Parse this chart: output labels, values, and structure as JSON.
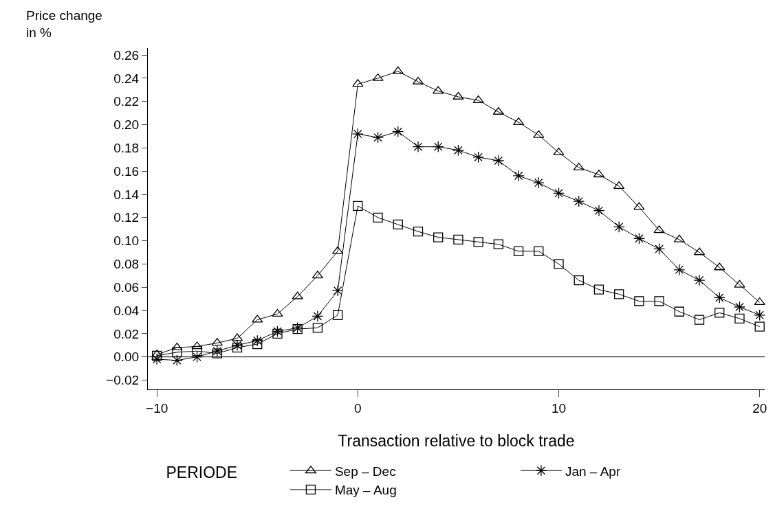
{
  "chart_data": {
    "type": "line",
    "ylabel": "Price change\nin %",
    "xlabel": "Transaction relative to block trade",
    "legend_title": "PERIODE",
    "x": [
      -10,
      -9,
      -8,
      -7,
      -6,
      -5,
      -4,
      -3,
      -2,
      -1,
      0,
      1,
      2,
      3,
      4,
      5,
      6,
      7,
      8,
      9,
      10,
      11,
      12,
      13,
      14,
      15,
      16,
      17,
      18,
      19,
      20
    ],
    "series": [
      {
        "name": "Sep – Dec",
        "color": "#000000",
        "marker": "triangle",
        "values": [
          0.002,
          0.008,
          0.009,
          0.012,
          0.016,
          0.032,
          0.037,
          0.052,
          0.07,
          0.091,
          0.235,
          0.24,
          0.246,
          0.237,
          0.229,
          0.224,
          0.221,
          0.211,
          0.202,
          0.191,
          0.176,
          0.163,
          0.157,
          0.147,
          0.129,
          0.109,
          0.101,
          0.09,
          0.077,
          0.062,
          0.047
        ]
      },
      {
        "name": "Jan – Apr",
        "color": "#000000",
        "marker": "cross",
        "values": [
          -0.002,
          -0.003,
          0.0,
          0.005,
          0.01,
          0.014,
          0.022,
          0.025,
          0.035,
          0.057,
          0.192,
          0.189,
          0.194,
          0.181,
          0.181,
          0.178,
          0.172,
          0.169,
          0.156,
          0.15,
          0.141,
          0.134,
          0.126,
          0.112,
          0.102,
          0.093,
          0.075,
          0.066,
          0.051,
          0.043,
          0.036
        ]
      },
      {
        "name": "May – Aug",
        "color": "#000000",
        "marker": "square",
        "values": [
          0.001,
          0.004,
          0.005,
          0.003,
          0.008,
          0.011,
          0.02,
          0.024,
          0.025,
          0.036,
          0.13,
          0.12,
          0.114,
          0.108,
          0.103,
          0.101,
          0.099,
          0.097,
          0.091,
          0.091,
          0.08,
          0.066,
          0.058,
          0.054,
          0.048,
          0.048,
          0.039,
          0.032,
          0.038,
          0.033,
          0.026
        ]
      }
    ],
    "xlim": [
      -10.45,
      20.25
    ],
    "ylim": [
      -0.028,
      0.266
    ],
    "xticks": [
      {
        "value": -10,
        "label": "−10"
      },
      0,
      10,
      20
    ],
    "yticks": [
      {
        "value": -0.02,
        "label": "−0.02"
      },
      {
        "value": 0,
        "label": "0.00"
      },
      {
        "value": 0.02,
        "label": "0.02"
      },
      {
        "value": 0.04,
        "label": "0.04"
      },
      {
        "value": 0.06,
        "label": "0.06"
      },
      {
        "value": 0.08,
        "label": "0.08"
      },
      {
        "value": 0.1,
        "label": "0.10"
      },
      {
        "value": 0.12,
        "label": "0.12"
      },
      {
        "value": 0.14,
        "label": "0.14"
      },
      {
        "value": 0.16,
        "label": "0.16"
      },
      {
        "value": 0.18,
        "label": "0.18"
      },
      {
        "value": 0.2,
        "label": "0.20"
      },
      {
        "value": 0.22,
        "label": "0.22"
      },
      {
        "value": 0.24,
        "label": "0.24"
      },
      {
        "value": 0.26,
        "label": "0.26"
      }
    ],
    "ref_lines": [
      {
        "axis": "y",
        "value": 0,
        "color": "#000000"
      }
    ],
    "legend": "bottom",
    "line_style": "solid"
  }
}
